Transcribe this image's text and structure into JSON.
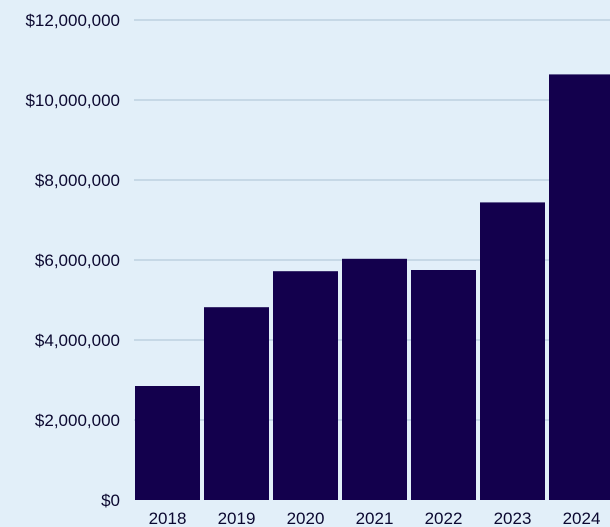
{
  "chart_data": {
    "type": "bar",
    "title": "",
    "xlabel": "",
    "ylabel": "",
    "categories": [
      "2018",
      "2019",
      "2020",
      "2021",
      "2022",
      "2023",
      "2024"
    ],
    "values": [
      2850000,
      4820000,
      5720000,
      6030000,
      5750000,
      7440000,
      10640000
    ],
    "ylim": [
      0,
      12000000
    ],
    "yticks": [
      0,
      2000000,
      4000000,
      6000000,
      8000000,
      10000000,
      12000000
    ],
    "ytick_labels": [
      "$0",
      "$2,000,000",
      "$4,000,000",
      "$6,000,000",
      "$8,000,000",
      "$10,000,000",
      "$12,000,000"
    ],
    "grid": true,
    "legend": "none",
    "colors": {
      "bar": "#13004d",
      "background": "#e2eff9",
      "grid": "#a9c0d4",
      "text": "#0b0830"
    }
  }
}
